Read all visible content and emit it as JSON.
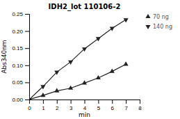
{
  "chart_data": {
    "type": "line",
    "title": "IDH2_lot 110106-2",
    "x_label": "min",
    "y_label": "Abs340nm",
    "x": [
      0,
      1,
      2,
      3,
      4,
      5,
      6,
      7
    ],
    "series": [
      {
        "name": "70 ng",
        "color": "#222222",
        "marker": "triangle-up",
        "values": [
          0.0,
          0.012,
          0.025,
          0.033,
          0.048,
          0.063,
          0.082,
          0.103
        ]
      },
      {
        "name": "140 ng",
        "color": "#222222",
        "marker": "triangle-down",
        "values": [
          0.0,
          0.038,
          0.08,
          0.11,
          0.148,
          0.178,
          0.208,
          0.233
        ]
      }
    ],
    "xlim": [
      0,
      8
    ],
    "xticks": [
      0,
      1,
      2,
      3,
      4,
      5,
      6,
      7,
      8
    ],
    "ylim": [
      0,
      0.25
    ],
    "yticks": [
      {
        "value": 0,
        "label": "0.00"
      },
      0.05,
      {
        "value": 0.1,
        "label": "0.10"
      },
      0.15,
      {
        "value": 0.2,
        "label": "0.20"
      },
      0.25
    ],
    "grid": false,
    "legend": "right"
  }
}
